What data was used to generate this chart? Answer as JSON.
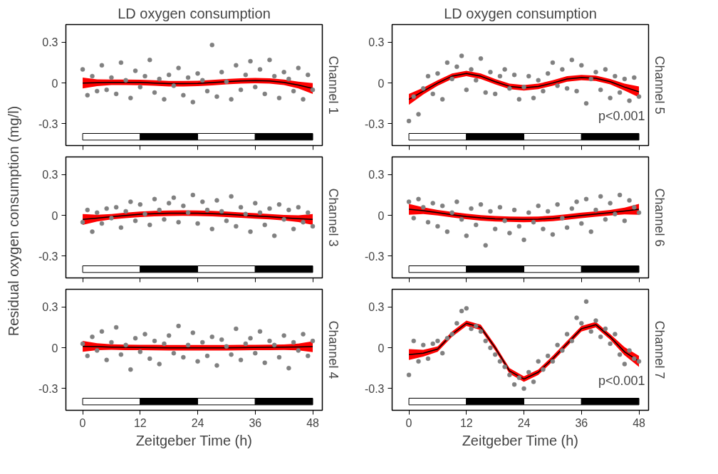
{
  "chart_data": [
    {
      "type": "scatter",
      "title": "LD oxygen consumption",
      "subtitle": "Channel 1",
      "tick_labels": "y",
      "grid": false,
      "marker": "circle",
      "x": [
        0,
        1,
        2,
        3,
        4,
        5,
        6,
        7,
        8,
        9,
        10,
        11,
        12,
        13,
        14,
        15,
        16,
        17,
        18,
        19,
        20,
        21,
        22,
        23,
        24,
        25,
        26,
        27,
        28,
        29,
        30,
        31,
        32,
        33,
        34,
        35,
        36,
        37,
        38,
        39,
        40,
        41,
        42,
        43,
        44,
        45,
        46,
        47,
        48
      ],
      "xlim": [
        -3.5,
        50
      ],
      "xticks": [
        0,
        12,
        24,
        36,
        48
      ],
      "ylim": [
        -0.46,
        0.43
      ],
      "yticks": [
        -0.3,
        0,
        0.3
      ],
      "bands": [
        {
          "axis": "x",
          "from": 0,
          "to": 12,
          "color": "#ffffff"
        },
        {
          "axis": "x",
          "from": 12,
          "to": 24,
          "color": "#000000"
        },
        {
          "axis": "x",
          "from": 24,
          "to": 36,
          "color": "#ffffff"
        },
        {
          "axis": "x",
          "from": 36,
          "to": 48,
          "color": "#000000"
        }
      ],
      "series": [
        {
          "color": "#808080",
          "values": [
            0.1,
            -0.09,
            0.05,
            -0.06,
            0.13,
            -0.05,
            0.04,
            -0.08,
            0.15,
            0.02,
            -0.11,
            0.09,
            -0.03,
            0.05,
            0.17,
            -0.07,
            0.03,
            -0.12,
            0.06,
            -0.02,
            0.11,
            -0.09,
            0.04,
            -0.14,
            0.07,
            0.02,
            -0.06,
            0.28,
            -0.1,
            0.08,
            0.01,
            -0.12,
            0.13,
            -0.05,
            0.06,
            0.16,
            -0.03,
            0.1,
            -0.08,
            0.17,
            0.05,
            -0.11,
            0.08,
            0.03,
            -0.06,
            0.11,
            -0.12,
            0.06,
            -0.05
          ]
        },
        {
          "type": "line",
          "marker": "none",
          "color": "#000000",
          "x": [
            0,
            3,
            6,
            9,
            12,
            15,
            18,
            21,
            24,
            27,
            30,
            33,
            36,
            39,
            42,
            45,
            48
          ],
          "values": [
            0,
            0.002,
            0.005,
            0.005,
            0.004,
            0,
            -0.005,
            -0.005,
            -0.003,
            0.003,
            0.01,
            0.015,
            0.018,
            0.015,
            0.005,
            -0.015,
            -0.04
          ],
          "lower": [
            -0.04,
            -0.023,
            -0.015,
            -0.015,
            -0.016,
            -0.02,
            -0.025,
            -0.025,
            -0.023,
            -0.017,
            -0.01,
            -0.005,
            -0.002,
            -0.005,
            -0.015,
            -0.04,
            -0.08
          ],
          "upper": [
            0.04,
            0.027,
            0.025,
            0.025,
            0.024,
            0.02,
            0.015,
            0.015,
            0.017,
            0.023,
            0.03,
            0.035,
            0.038,
            0.035,
            0.025,
            0.01,
            0
          ]
        }
      ]
    },
    {
      "type": "scatter",
      "title": "LD oxygen consumption",
      "subtitle": "Channel 5",
      "tick_labels": "y",
      "grid": false,
      "marker": "circle",
      "annotations": [
        "p<0.001"
      ],
      "x": [
        0,
        1,
        2,
        3,
        4,
        5,
        6,
        7,
        8,
        9,
        10,
        11,
        12,
        13,
        14,
        15,
        16,
        17,
        18,
        19,
        20,
        21,
        22,
        23,
        24,
        25,
        26,
        27,
        28,
        29,
        30,
        31,
        32,
        33,
        34,
        35,
        36,
        37,
        38,
        39,
        40,
        41,
        42,
        43,
        44,
        45,
        46,
        47,
        48
      ],
      "xlim": [
        -3.5,
        50
      ],
      "xticks": [
        0,
        12,
        24,
        36,
        48
      ],
      "ylim": [
        -0.46,
        0.43
      ],
      "yticks": [
        -0.3,
        0,
        0.3
      ],
      "bands": [
        {
          "axis": "x",
          "from": 0,
          "to": 12,
          "color": "#ffffff"
        },
        {
          "axis": "x",
          "from": 12,
          "to": 24,
          "color": "#000000"
        },
        {
          "axis": "x",
          "from": 24,
          "to": 36,
          "color": "#ffffff"
        },
        {
          "axis": "x",
          "from": 36,
          "to": 48,
          "color": "#000000"
        }
      ],
      "series": [
        {
          "color": "#808080",
          "values": [
            -0.28,
            -0.1,
            -0.23,
            -0.04,
            0.05,
            -0.08,
            0.07,
            -0.12,
            0.15,
            0.03,
            0.12,
            0.2,
            -0.05,
            0.1,
            0.02,
            0.18,
            -0.07,
            0.08,
            -0.08,
            0.05,
            0.1,
            -0.04,
            0.06,
            -0.12,
            -0.03,
            0.05,
            -0.11,
            0.02,
            -0.06,
            0.07,
            0.15,
            -0.02,
            0.1,
            -0.04,
            0.17,
            -0.06,
            0.13,
            -0.15,
            0.03,
            0.08,
            -0.05,
            0.1,
            -0.11,
            0.05,
            -0.07,
            0.03,
            -0.13,
            0.04,
            -0.1
          ]
        },
        {
          "type": "line",
          "marker": "none",
          "color": "#000000",
          "x": [
            0,
            3,
            6,
            9,
            12,
            15,
            18,
            21,
            24,
            27,
            30,
            33,
            36,
            39,
            42,
            45,
            48
          ],
          "values": [
            -0.12,
            -0.06,
            0,
            0.05,
            0.07,
            0.05,
            0.01,
            -0.025,
            -0.035,
            -0.025,
            0,
            0.03,
            0.04,
            0.035,
            0.01,
            -0.03,
            -0.065
          ],
          "lower": [
            -0.16,
            -0.085,
            -0.02,
            0.03,
            0.05,
            0.03,
            -0.01,
            -0.045,
            -0.055,
            -0.045,
            -0.02,
            0.01,
            0.02,
            0.015,
            -0.01,
            -0.055,
            -0.105
          ],
          "upper": [
            -0.08,
            -0.035,
            0.02,
            0.07,
            0.09,
            0.07,
            0.03,
            -0.005,
            -0.015,
            -0.005,
            0.02,
            0.05,
            0.06,
            0.055,
            0.03,
            -0.005,
            -0.025
          ]
        }
      ]
    },
    {
      "type": "scatter",
      "subtitle": "Channel 3",
      "ylabel": "Residual oxygen consumption (mg/l)",
      "tick_labels": "y",
      "grid": false,
      "marker": "circle",
      "x": [
        0,
        1,
        2,
        3,
        4,
        5,
        6,
        7,
        8,
        9,
        10,
        11,
        12,
        13,
        14,
        15,
        16,
        17,
        18,
        19,
        20,
        21,
        22,
        23,
        24,
        25,
        26,
        27,
        28,
        29,
        30,
        31,
        32,
        33,
        34,
        35,
        36,
        37,
        38,
        39,
        40,
        41,
        42,
        43,
        44,
        45,
        46,
        47,
        48
      ],
      "xlim": [
        -3.5,
        50
      ],
      "xticks": [
        0,
        12,
        24,
        36,
        48
      ],
      "ylim": [
        -0.46,
        0.43
      ],
      "yticks": [
        -0.3,
        0,
        0.3
      ],
      "bands": [
        {
          "axis": "x",
          "from": 0,
          "to": 12,
          "color": "#ffffff"
        },
        {
          "axis": "x",
          "from": 12,
          "to": 24,
          "color": "#000000"
        },
        {
          "axis": "x",
          "from": 24,
          "to": 36,
          "color": "#ffffff"
        },
        {
          "axis": "x",
          "from": 36,
          "to": 48,
          "color": "#000000"
        }
      ],
      "series": [
        {
          "color": "#808080",
          "values": [
            -0.05,
            0.04,
            -0.12,
            0.02,
            -0.06,
            0.05,
            -0.02,
            0.06,
            -0.09,
            0.03,
            0.1,
            -0.04,
            0.08,
            0.01,
            -0.07,
            0.12,
            0.04,
            -0.03,
            0.09,
            0.13,
            -0.05,
            0.07,
            0.02,
            0.15,
            -0.06,
            0.1,
            0.04,
            -0.1,
            0.11,
            0.03,
            -0.04,
            0.14,
            -0.08,
            0.06,
            0.01,
            -0.12,
            0.09,
            0.02,
            -0.07,
            0.05,
            -0.15,
            0.08,
            -0.03,
            0.04,
            -0.1,
            0.06,
            -0.05,
            0.02,
            -0.08
          ]
        },
        {
          "type": "line",
          "marker": "none",
          "color": "#000000",
          "x": [
            0,
            3,
            6,
            9,
            12,
            15,
            18,
            21,
            24,
            27,
            30,
            33,
            36,
            39,
            42,
            45,
            48
          ],
          "values": [
            -0.03,
            -0.02,
            -0.01,
            0,
            0.008,
            0.013,
            0.016,
            0.017,
            0.016,
            0.013,
            0.008,
            0.002,
            -0.004,
            -0.01,
            -0.017,
            -0.024,
            -0.03
          ],
          "lower": [
            -0.07,
            -0.045,
            -0.03,
            -0.02,
            -0.012,
            -0.007,
            -0.004,
            -0.003,
            -0.004,
            -0.007,
            -0.012,
            -0.018,
            -0.024,
            -0.03,
            -0.037,
            -0.049,
            -0.07
          ],
          "upper": [
            0.01,
            0.005,
            0.01,
            0.02,
            0.028,
            0.033,
            0.036,
            0.037,
            0.036,
            0.033,
            0.028,
            0.022,
            0.016,
            0.01,
            0.003,
            0.001,
            0.01
          ]
        }
      ]
    },
    {
      "type": "scatter",
      "subtitle": "Channel 6",
      "tick_labels": "y",
      "grid": false,
      "marker": "circle",
      "x": [
        0,
        1,
        2,
        3,
        4,
        5,
        6,
        7,
        8,
        9,
        10,
        11,
        12,
        13,
        14,
        15,
        16,
        17,
        18,
        19,
        20,
        21,
        22,
        23,
        24,
        25,
        26,
        27,
        28,
        29,
        30,
        31,
        32,
        33,
        34,
        35,
        36,
        37,
        38,
        39,
        40,
        41,
        42,
        43,
        44,
        45,
        46,
        47,
        48
      ],
      "xlim": [
        -3.5,
        50
      ],
      "xticks": [
        0,
        12,
        24,
        36,
        48
      ],
      "ylim": [
        -0.46,
        0.43
      ],
      "yticks": [
        -0.3,
        0,
        0.3
      ],
      "bands": [
        {
          "axis": "x",
          "from": 0,
          "to": 12,
          "color": "#ffffff"
        },
        {
          "axis": "x",
          "from": 12,
          "to": 24,
          "color": "#000000"
        },
        {
          "axis": "x",
          "from": 24,
          "to": 36,
          "color": "#ffffff"
        },
        {
          "axis": "x",
          "from": 36,
          "to": 48,
          "color": "#000000"
        }
      ],
      "series": [
        {
          "color": "#808080",
          "values": [
            0.1,
            -0.02,
            0.12,
            0.06,
            -0.05,
            0.09,
            -0.08,
            0.07,
            -0.12,
            0.02,
            0.1,
            -0.03,
            -0.15,
            0.05,
            -0.07,
            0.08,
            -0.22,
            0.03,
            -0.1,
            0.06,
            -0.04,
            -0.13,
            0.04,
            -0.08,
            -0.18,
            0.02,
            -0.05,
            0.07,
            -0.1,
            0.03,
            -0.14,
            0.08,
            -0.02,
            -0.09,
            0.05,
            0.1,
            -0.06,
            0.12,
            -0.12,
            0.04,
            0.14,
            -0.03,
            0.09,
            0.01,
            0.15,
            -0.04,
            0.11,
            0.06,
            0.02
          ]
        },
        {
          "type": "line",
          "marker": "none",
          "color": "#000000",
          "x": [
            0,
            3,
            6,
            9,
            12,
            15,
            18,
            21,
            24,
            27,
            30,
            33,
            36,
            39,
            42,
            45,
            48
          ],
          "values": [
            0.045,
            0.035,
            0.02,
            0.005,
            -0.008,
            -0.018,
            -0.025,
            -0.028,
            -0.03,
            -0.028,
            -0.022,
            -0.012,
            0,
            0.01,
            0.02,
            0.032,
            0.045
          ],
          "lower": [
            0.005,
            0.01,
            0,
            -0.015,
            -0.028,
            -0.038,
            -0.045,
            -0.048,
            -0.05,
            -0.048,
            -0.042,
            -0.032,
            -0.02,
            -0.01,
            0,
            0.007,
            0.005
          ],
          "upper": [
            0.085,
            0.06,
            0.04,
            0.025,
            0.012,
            0.002,
            -0.005,
            -0.008,
            -0.01,
            -0.008,
            -0.002,
            0.008,
            0.02,
            0.03,
            0.04,
            0.057,
            0.085
          ]
        }
      ]
    },
    {
      "type": "scatter",
      "subtitle": "Channel 4",
      "xlabel": "Zeitgeber Time (h)",
      "grid": false,
      "marker": "circle",
      "x": [
        0,
        1,
        2,
        3,
        4,
        5,
        6,
        7,
        8,
        9,
        10,
        11,
        12,
        13,
        14,
        15,
        16,
        17,
        18,
        19,
        20,
        21,
        22,
        23,
        24,
        25,
        26,
        27,
        28,
        29,
        30,
        31,
        32,
        33,
        34,
        35,
        36,
        37,
        38,
        39,
        40,
        41,
        42,
        43,
        44,
        45,
        46,
        47,
        48
      ],
      "xlim": [
        -3.5,
        50
      ],
      "xticks": [
        0,
        12,
        24,
        36,
        48
      ],
      "ylim": [
        -0.46,
        0.43
      ],
      "yticks": [
        -0.3,
        0,
        0.3
      ],
      "bands": [
        {
          "axis": "x",
          "from": 0,
          "to": 12,
          "color": "#ffffff"
        },
        {
          "axis": "x",
          "from": 12,
          "to": 24,
          "color": "#000000"
        },
        {
          "axis": "x",
          "from": 24,
          "to": 36,
          "color": "#ffffff"
        },
        {
          "axis": "x",
          "from": 36,
          "to": 48,
          "color": "#000000"
        }
      ],
      "series": [
        {
          "color": "#808080",
          "values": [
            0.03,
            -0.06,
            0.08,
            -0.02,
            0.12,
            -0.09,
            0.04,
            0.15,
            -0.05,
            0.02,
            -0.16,
            0.07,
            -0.03,
            0.1,
            -0.08,
            0.05,
            -0.12,
            0.03,
            0.09,
            -0.04,
            0.16,
            -0.07,
            0.02,
            0.11,
            -0.1,
            0.04,
            -0.06,
            0.08,
            -0.13,
            0.06,
            0.01,
            -0.05,
            0.14,
            -0.09,
            0.03,
            0.07,
            -0.04,
            0.12,
            -0.11,
            0.05,
            0.02,
            -0.07,
            0.09,
            -0.15,
            0.04,
            -0.02,
            0.1,
            -0.06,
            0.05
          ]
        },
        {
          "type": "line",
          "marker": "none",
          "color": "#000000",
          "x": [
            0,
            3,
            6,
            9,
            12,
            15,
            18,
            21,
            24,
            27,
            30,
            33,
            36,
            39,
            42,
            45,
            48
          ],
          "values": [
            0.01,
            0.008,
            0.005,
            0.003,
            0.002,
            0.001,
            0,
            0,
            0,
            0,
            0,
            0.001,
            0.002,
            0.003,
            0.004,
            0.006,
            0.008
          ],
          "lower": [
            -0.03,
            -0.017,
            -0.015,
            -0.017,
            -0.018,
            -0.019,
            -0.02,
            -0.02,
            -0.02,
            -0.02,
            -0.02,
            -0.019,
            -0.018,
            -0.017,
            -0.016,
            -0.019,
            -0.032
          ],
          "upper": [
            0.05,
            0.033,
            0.025,
            0.023,
            0.022,
            0.021,
            0.02,
            0.02,
            0.02,
            0.02,
            0.02,
            0.021,
            0.022,
            0.023,
            0.024,
            0.031,
            0.048
          ]
        }
      ]
    },
    {
      "type": "scatter",
      "subtitle": "Channel 7",
      "xlabel": "Zeitgeber Time (h)",
      "grid": false,
      "marker": "circle",
      "annotations": [
        "p<0.001"
      ],
      "x": [
        0,
        1,
        2,
        3,
        4,
        5,
        6,
        7,
        8,
        9,
        10,
        11,
        12,
        13,
        14,
        15,
        16,
        17,
        18,
        19,
        20,
        21,
        22,
        23,
        24,
        25,
        26,
        27,
        28,
        29,
        30,
        31,
        32,
        33,
        34,
        35,
        36,
        37,
        38,
        39,
        40,
        41,
        42,
        43,
        44,
        45,
        46,
        47,
        48
      ],
      "xlim": [
        -3.5,
        50
      ],
      "xticks": [
        0,
        12,
        24,
        36,
        48
      ],
      "ylim": [
        -0.46,
        0.43
      ],
      "yticks": [
        -0.3,
        0,
        0.3
      ],
      "bands": [
        {
          "axis": "x",
          "from": 0,
          "to": 12,
          "color": "#ffffff"
        },
        {
          "axis": "x",
          "from": 12,
          "to": 24,
          "color": "#000000"
        },
        {
          "axis": "x",
          "from": 24,
          "to": 36,
          "color": "#ffffff"
        },
        {
          "axis": "x",
          "from": 36,
          "to": 48,
          "color": "#000000"
        }
      ],
      "series": [
        {
          "color": "#808080",
          "values": [
            -0.2,
            0.05,
            -0.1,
            0.02,
            -0.08,
            0.03,
            0.05,
            -0.04,
            0.07,
            0.1,
            0.18,
            0.27,
            0.29,
            0.14,
            0.16,
            0.12,
            0.05,
            0,
            -0.05,
            -0.1,
            -0.14,
            -0.2,
            -0.27,
            -0.22,
            -0.3,
            -0.18,
            -0.25,
            -0.1,
            -0.16,
            -0.06,
            -0.1,
            0.02,
            -0.02,
            0.1,
            0.05,
            0.22,
            0.18,
            0.34,
            0.12,
            0.2,
            0.08,
            0.14,
            0.03,
            0.1,
            -0.05,
            -0.12,
            -0.02,
            -0.08,
            -0.1
          ]
        },
        {
          "type": "line",
          "marker": "none",
          "color": "#000000",
          "x": [
            0,
            3,
            6,
            9,
            12,
            15,
            18,
            21,
            24,
            27,
            30,
            33,
            36,
            39,
            42,
            45,
            48
          ],
          "values": [
            -0.05,
            -0.04,
            -0.01,
            0.1,
            0.18,
            0.15,
            0,
            -0.17,
            -0.23,
            -0.18,
            -0.08,
            0.03,
            0.14,
            0.17,
            0.08,
            -0.03,
            -0.1
          ],
          "lower": [
            -0.09,
            -0.065,
            -0.03,
            0.08,
            0.16,
            0.13,
            -0.02,
            -0.19,
            -0.25,
            -0.2,
            -0.1,
            0.01,
            0.12,
            0.15,
            0.06,
            -0.055,
            -0.14
          ],
          "upper": [
            -0.01,
            -0.015,
            0.01,
            0.12,
            0.2,
            0.17,
            0.02,
            -0.15,
            -0.21,
            -0.16,
            -0.06,
            0.05,
            0.16,
            0.19,
            0.1,
            0.005,
            -0.06
          ]
        }
      ]
    }
  ]
}
